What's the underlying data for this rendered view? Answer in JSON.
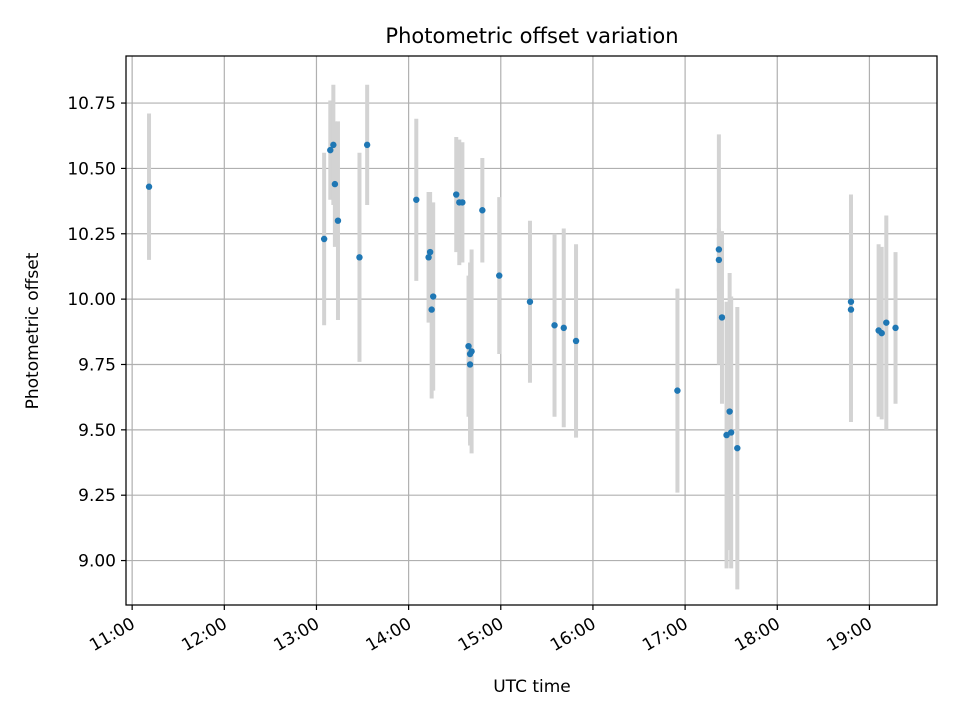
{
  "chart_data": {
    "type": "scatter",
    "title": "Photometric offset variation",
    "xlabel": "UTC time",
    "ylabel": "Photometric offset",
    "xlim": [
      "10:56",
      "19:44"
    ],
    "ylim": [
      8.83,
      10.93
    ],
    "grid": true,
    "x_ticks": [
      "11:00",
      "12:00",
      "13:00",
      "14:00",
      "15:00",
      "16:00",
      "17:00",
      "18:00",
      "19:00"
    ],
    "y_ticks": [
      "9.00",
      "9.25",
      "9.50",
      "9.75",
      "10.00",
      "10.25",
      "10.50",
      "10.75"
    ],
    "colors": {
      "points": "#1f77b4",
      "errorbars": "#d3d3d3",
      "grid": "#b0b0b0"
    },
    "series": [
      {
        "points": [
          {
            "t": "11:11",
            "y": 10.43,
            "yerr": 0.28
          },
          {
            "t": "13:05",
            "y": 10.23,
            "yerr": 0.33
          },
          {
            "t": "13:09",
            "y": 10.57,
            "yerr": 0.19
          },
          {
            "t": "13:11",
            "y": 10.59,
            "yerr": 0.23
          },
          {
            "t": "13:12",
            "y": 10.44,
            "yerr": 0.24
          },
          {
            "t": "13:14",
            "y": 10.3,
            "yerr": 0.38
          },
          {
            "t": "13:28",
            "y": 10.16,
            "yerr": 0.4
          },
          {
            "t": "13:33",
            "y": 10.59,
            "yerr": 0.23
          },
          {
            "t": "14:05",
            "y": 10.38,
            "yerr": 0.31
          },
          {
            "t": "14:13",
            "y": 10.16,
            "yerr": 0.25
          },
          {
            "t": "14:14",
            "y": 10.18,
            "yerr": 0.23
          },
          {
            "t": "14:15",
            "y": 9.96,
            "yerr": 0.34
          },
          {
            "t": "14:16",
            "y": 10.01,
            "yerr": 0.36
          },
          {
            "t": "14:31",
            "y": 10.4,
            "yerr": 0.22
          },
          {
            "t": "14:33",
            "y": 10.37,
            "yerr": 0.24
          },
          {
            "t": "14:35",
            "y": 10.37,
            "yerr": 0.23
          },
          {
            "t": "14:39",
            "y": 9.82,
            "yerr": 0.27
          },
          {
            "t": "14:40",
            "y": 9.75,
            "yerr": 0.3
          },
          {
            "t": "14:40",
            "y": 9.79,
            "yerr": 0.35
          },
          {
            "t": "14:41",
            "y": 9.8,
            "yerr": 0.39
          },
          {
            "t": "14:48",
            "y": 10.34,
            "yerr": 0.2
          },
          {
            "t": "14:59",
            "y": 10.09,
            "yerr": 0.3
          },
          {
            "t": "15:19",
            "y": 9.99,
            "yerr": 0.31
          },
          {
            "t": "15:35",
            "y": 9.9,
            "yerr": 0.35
          },
          {
            "t": "15:41",
            "y": 9.89,
            "yerr": 0.38
          },
          {
            "t": "15:49",
            "y": 9.84,
            "yerr": 0.37
          },
          {
            "t": "16:55",
            "y": 9.65,
            "yerr": 0.39
          },
          {
            "t": "17:22",
            "y": 10.19,
            "yerr": 0.44
          },
          {
            "t": "17:22",
            "y": 10.15,
            "yerr": 0.12
          },
          {
            "t": "17:24",
            "y": 9.93,
            "yerr": 0.33
          },
          {
            "t": "17:27",
            "y": 9.48,
            "yerr": 0.51
          },
          {
            "t": "17:29",
            "y": 9.57,
            "yerr": 0.53
          },
          {
            "t": "17:30",
            "y": 9.49,
            "yerr": 0.52
          },
          {
            "t": "17:34",
            "y": 9.43,
            "yerr": 0.54
          },
          {
            "t": "18:48",
            "y": 9.99,
            "yerr": 0.41
          },
          {
            "t": "18:48",
            "y": 9.96,
            "yerr": 0.43
          },
          {
            "t": "19:06",
            "y": 9.88,
            "yerr": 0.33
          },
          {
            "t": "19:08",
            "y": 9.87,
            "yerr": 0.33
          },
          {
            "t": "19:11",
            "y": 9.91,
            "yerr": 0.41
          },
          {
            "t": "19:17",
            "y": 9.89,
            "yerr": 0.29
          }
        ]
      }
    ]
  }
}
